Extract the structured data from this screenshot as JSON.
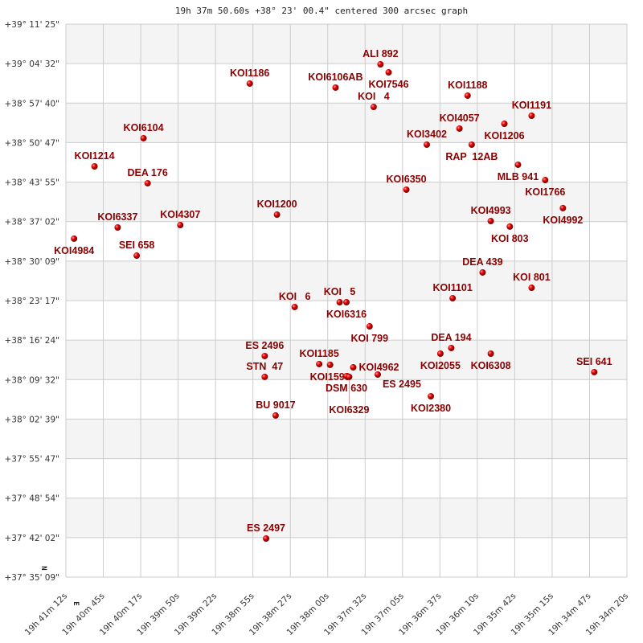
{
  "chart_data": {
    "type": "scatter",
    "title": "19h 37m 50.60s +38° 23' 00.4\" centered 300 arcsec graph",
    "xlim": [
      "19h 41m 12s",
      "19h 34m 20s"
    ],
    "ylim": [
      "+37 35 09",
      "+39 11 25"
    ],
    "grid": true,
    "x_tick_labels": [
      "19h 41m 12s",
      "19h 40m 45s",
      "19h 40m 17s",
      "19h 39m 50s",
      "19h 39m 22s",
      "19h 38m 55s",
      "19h 38m 27s",
      "19h 38m 00s",
      "19h 37m 32s",
      "19h 37m 05s",
      "19h 36m 37s",
      "19h 36m 10s",
      "19h 35m 42s",
      "19h 35m 15s",
      "19h 34m 47s",
      "19h 34m 20s"
    ],
    "y_tick_labels": [
      "+39° 11' 25\"",
      "+39° 04' 32\"",
      "+38° 57' 40\"",
      "+38° 50' 47\"",
      "+38° 43' 55\"",
      "+38° 37' 02\"",
      "+38° 30' 09\"",
      "+38° 23' 17\"",
      "+38° 16' 24\"",
      "+38° 09' 32\"",
      "+38° 02' 39\"",
      "+37° 55' 47\"",
      "+37° 48' 54\"",
      "+37° 42' 02\"",
      "+37° 35' 09\""
    ],
    "compass": {
      "north": "N",
      "east": "E"
    },
    "colors": {
      "marker": "#dd0000",
      "label": "#8b0000",
      "band": "#f4f4f4",
      "grid": "#cccccc"
    },
    "points": [
      {
        "name": "ALI 892",
        "ra": "19h 37m 21s",
        "dec": "+39 04 25"
      },
      {
        "name": "KOI7546",
        "ra": "19h 37m 15s",
        "dec": "+39 03 01"
      },
      {
        "name": "KOI1186",
        "ra": "19h 38m 57s",
        "dec": "+39 01 04"
      },
      {
        "name": "KOI6106AB",
        "ra": "19h 37m 54s",
        "dec": "+39 00 22"
      },
      {
        "name": "KOI   4",
        "ra": "19h 37m 26s",
        "dec": "+38 57 00"
      },
      {
        "name": "KOI1188",
        "ra": "19h 36m 17s",
        "dec": "+38 58 58"
      },
      {
        "name": "KOI1191",
        "ra": "19h 35m 30s",
        "dec": "+38 55 28"
      },
      {
        "name": "KOI1206",
        "ra": "19h 35m 50s",
        "dec": "+38 54 04"
      },
      {
        "name": "KOI4057",
        "ra": "19h 36m 23s",
        "dec": "+38 53 14"
      },
      {
        "name": "KOI3402",
        "ra": "19h 36m 47s",
        "dec": "+38 50 26"
      },
      {
        "name": "RAP  12AB",
        "ra": "19h 36m 14s",
        "dec": "+38 50 26"
      },
      {
        "name": "KOI6104",
        "ra": "19h 40m 15s",
        "dec": "+38 51 33"
      },
      {
        "name": "KOI1214",
        "ra": "19h 40m 51s",
        "dec": "+38 46 39"
      },
      {
        "name": "MLB 941",
        "ra": "19h 35m 40s",
        "dec": "+38 46 56"
      },
      {
        "name": "DEA 176",
        "ra": "19h 40m 12s",
        "dec": "+38 43 43"
      },
      {
        "name": "KOI1766",
        "ra": "19h 35m 20s",
        "dec": "+38 44 16"
      },
      {
        "name": "KOI6350",
        "ra": "19h 37m 02s",
        "dec": "+38 42 36"
      },
      {
        "name": "KOI4992",
        "ra": "19h 35m 07s",
        "dec": "+38 39 23"
      },
      {
        "name": "KOI1200",
        "ra": "19h 38m 37s",
        "dec": "+38 38 15"
      },
      {
        "name": "KOI4993",
        "ra": "19h 36m 00s",
        "dec": "+38 37 08"
      },
      {
        "name": "KOI 803",
        "ra": "19h 35m 46s",
        "dec": "+38 36 10"
      },
      {
        "name": "KOI4307",
        "ra": "19h 39m 48s",
        "dec": "+38 36 26"
      },
      {
        "name": "KOI6337",
        "ra": "19h 40m 34s",
        "dec": "+38 36 01"
      },
      {
        "name": "KOI4984",
        "ra": "19h 41m 06s",
        "dec": "+38 34 04"
      },
      {
        "name": "SEI 658",
        "ra": "19h 40m 20s",
        "dec": "+38 31 07"
      },
      {
        "name": "DEA 439",
        "ra": "19h 36m 06s",
        "dec": "+38 28 11"
      },
      {
        "name": "KOI 801",
        "ra": "19h 35m 30s",
        "dec": "+38 25 31"
      },
      {
        "name": "KOI1101",
        "ra": "19h 36m 28s",
        "dec": "+38 23 42"
      },
      {
        "name": "KOI   6",
        "ra": "19h 38m 24s",
        "dec": "+38 22 10"
      },
      {
        "name": "KOI   5",
        "ra": "19h 37m 51s",
        "dec": "+38 23 00"
      },
      {
        "name": "KOI6316",
        "ra": "19h 37m 46s",
        "dec": "+38 23 00"
      },
      {
        "name": "KOI 799",
        "ra": "19h 37m 29s",
        "dec": "+38 18 48"
      },
      {
        "name": "DEA 194",
        "ra": "19h 36m 29s",
        "dec": "+38 15 02"
      },
      {
        "name": "KOI2055",
        "ra": "19h 36m 37s",
        "dec": "+38 14 03"
      },
      {
        "name": "KOI6308",
        "ra": "19h 36m 00s",
        "dec": "+38 14 03"
      },
      {
        "name": "ES 2496",
        "ra": "19h 38m 46s",
        "dec": "+38 13 38"
      },
      {
        "name": "SEI 641",
        "ra": "19h 34m 44s",
        "dec": "+38 10 50"
      },
      {
        "name": "STN  47",
        "ra": "19h 38m 46s",
        "dec": "+38 10 00"
      },
      {
        "name": "KOI1185",
        "ra": "19h 38m 06s",
        "dec": "+38 12 14"
      },
      {
        "name": "KOI1599",
        "ra": "19h 37m 58s",
        "dec": "+38 12 06"
      },
      {
        "name": "KOI4962",
        "ra": "19h 37m 41s",
        "dec": "+38 11 40"
      },
      {
        "name": "DSM 630",
        "ra": "19h 37m 46s",
        "dec": "+38 10 08"
      },
      {
        "name": "KOI6329",
        "ra": "19h 37m 44s",
        "dec": "+38 10 00"
      },
      {
        "name": "ES 2495",
        "ra": "19h 37m 23s",
        "dec": "+38 10 25"
      },
      {
        "name": "BU 9017",
        "ra": "19h 38m 38s",
        "dec": "+38 03 17"
      },
      {
        "name": "KOI2380",
        "ra": "19h 36m 44s",
        "dec": "+38 06 38"
      },
      {
        "name": "ES 2497",
        "ra": "19h 38m 45s",
        "dec": "+37 41 52"
      }
    ]
  }
}
